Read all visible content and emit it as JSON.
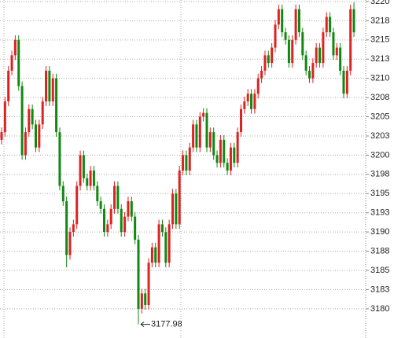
{
  "chart_data": {
    "type": "candlestick",
    "up_color": "#dd2222",
    "down_color": "#118811",
    "open": [
      3202,
      3203,
      3207,
      3211,
      3213,
      3215,
      3209,
      3200,
      3203,
      3206,
      3204,
      3201,
      3204,
      3207,
      3211,
      3207,
      3210,
      3203,
      3196,
      3194,
      3187,
      3190,
      3191,
      3196,
      3200,
      3197,
      3196,
      3198,
      3196,
      3194,
      3193,
      3190,
      3191,
      3193,
      3196,
      3193,
      3190,
      3192,
      3194,
      3192,
      3189,
      3180,
      3182,
      3180.5,
      3186,
      3188,
      3186,
      3191,
      3190,
      3186,
      3191,
      3195,
      3191,
      3198,
      3200,
      3198,
      3201,
      3204,
      3201,
      3205,
      3205.5,
      3201,
      3203,
      3200,
      3199,
      3202,
      3199,
      3198,
      3201,
      3199,
      3203,
      3206,
      3207,
      3208,
      3206,
      3208,
      3210,
      3211,
      3213,
      3212,
      3214,
      3217,
      3219,
      3216,
      3215,
      3212,
      3215,
      3219,
      3216,
      3213,
      3211,
      3210,
      3212,
      3214,
      3212,
      3216,
      3218,
      3216,
      3213,
      3214,
      3211,
      3208,
      3211,
      3219
    ],
    "high": [
      3203.6,
      3207.6,
      3211.6,
      3213.6,
      3215.6,
      3215.6,
      3209.6,
      3203.6,
      3206.6,
      3206.6,
      3204.6,
      3204.6,
      3207.6,
      3211.6,
      3211.6,
      3210.6,
      3210.6,
      3203.6,
      3196.6,
      3194.6,
      3190.6,
      3191.6,
      3196.6,
      3200.6,
      3200.6,
      3197.6,
      3198.6,
      3198.6,
      3196.6,
      3194.6,
      3193.6,
      3191.6,
      3193.6,
      3196.6,
      3196.6,
      3193.6,
      3192.6,
      3194.6,
      3194.6,
      3192.6,
      3189.6,
      3182.6,
      3182.6,
      3186.6,
      3188.6,
      3188.6,
      3191.6,
      3191.6,
      3190.6,
      3191.6,
      3195.6,
      3195.6,
      3198.6,
      3200.6,
      3200.6,
      3201.6,
      3204.6,
      3204.6,
      3205.6,
      3206.1,
      3206.1,
      3203.6,
      3203.6,
      3200.6,
      3202.6,
      3202.6,
      3199.6,
      3201.6,
      3201.6,
      3203.6,
      3206.6,
      3207.6,
      3208.6,
      3208.6,
      3208.6,
      3210.6,
      3211.6,
      3213.6,
      3213.6,
      3214.6,
      3217.6,
      3219.6,
      3219.6,
      3216.6,
      3215.6,
      3215.6,
      3219.6,
      3219.6,
      3216.6,
      3213.6,
      3211.6,
      3212.6,
      3214.6,
      3214.6,
      3216.6,
      3218.6,
      3218.6,
      3216.6,
      3214.6,
      3214.6,
      3211.6,
      3211.6,
      3219.6,
      3219.9
    ],
    "low": [
      3201.4,
      3202.4,
      3206.4,
      3210.4,
      3212.4,
      3208.4,
      3199.4,
      3199.4,
      3202.4,
      3203.4,
      3200.4,
      3200.4,
      3203.4,
      3206.4,
      3206.4,
      3206.4,
      3202.4,
      3195.4,
      3193.4,
      3185.4,
      3186.4,
      3189.4,
      3190.4,
      3195.4,
      3196.4,
      3195.4,
      3195.4,
      3195.4,
      3193.4,
      3192.4,
      3189.4,
      3189.4,
      3190.4,
      3192.4,
      3192.4,
      3189.4,
      3189.4,
      3191.4,
      3191.4,
      3188.4,
      3177.98,
      3179.4,
      3179.9,
      3179.9,
      3185.4,
      3185.4,
      3185.4,
      3189.4,
      3185.4,
      3185.4,
      3190.4,
      3190.4,
      3190.4,
      3197.4,
      3197.4,
      3197.4,
      3200.4,
      3200.4,
      3200.4,
      3204.4,
      3200.4,
      3200.4,
      3199.4,
      3198.4,
      3198.4,
      3198.4,
      3197.4,
      3197.4,
      3198.4,
      3198.4,
      3202.4,
      3205.4,
      3206.4,
      3205.4,
      3205.4,
      3207.4,
      3209.4,
      3210.4,
      3211.4,
      3211.4,
      3213.4,
      3216.4,
      3215.4,
      3214.4,
      3211.4,
      3211.4,
      3214.4,
      3215.4,
      3212.4,
      3210.4,
      3209.4,
      3209.4,
      3211.4,
      3211.4,
      3211.4,
      3215.4,
      3215.4,
      3212.4,
      3212.4,
      3210.4,
      3207.4,
      3207.4,
      3210.4,
      3215.4
    ],
    "close": [
      3203,
      3207,
      3211,
      3213,
      3215,
      3209,
      3200,
      3203,
      3206,
      3204,
      3201,
      3204,
      3207,
      3211,
      3207,
      3210,
      3203,
      3196,
      3194,
      3187,
      3190,
      3191,
      3196,
      3200,
      3197,
      3196,
      3198,
      3196,
      3194,
      3193,
      3190,
      3191,
      3193,
      3196,
      3193,
      3190,
      3192,
      3194,
      3192,
      3189,
      3180,
      3182,
      3180.5,
      3186,
      3188,
      3186,
      3191,
      3190,
      3186,
      3191,
      3195,
      3191,
      3198,
      3200,
      3198,
      3201,
      3204,
      3201,
      3205,
      3205.5,
      3201,
      3203,
      3200,
      3199,
      3202,
      3199,
      3198,
      3201,
      3199,
      3203,
      3206,
      3207,
      3208,
      3206,
      3208,
      3210,
      3211,
      3213,
      3212,
      3214,
      3217,
      3219,
      3216,
      3215,
      3212,
      3215,
      3219,
      3216,
      3213,
      3211,
      3210,
      3212,
      3214,
      3212,
      3216,
      3218,
      3216,
      3213,
      3214,
      3211,
      3208,
      3211,
      3219,
      3216
    ],
    "low_annotation": 3177.98,
    "ylim": [
      3176.2,
      3220.2
    ],
    "yticks": [
      3220,
      {
        "value": 3217.5,
        "label": "3218"
      },
      3215,
      {
        "value": 3212.5,
        "label": "3213"
      },
      3210,
      {
        "value": 3207.5,
        "label": "3208"
      },
      3205,
      {
        "value": 3202.5,
        "label": "3203"
      },
      3200,
      {
        "value": 3197.5,
        "label": "3198"
      },
      3195,
      {
        "value": 3192.5,
        "label": "3193"
      },
      3190,
      {
        "value": 3187.5,
        "label": "3188"
      },
      3185,
      {
        "value": 3182.5,
        "label": "3183"
      },
      3180
    ],
    "grid": true
  }
}
